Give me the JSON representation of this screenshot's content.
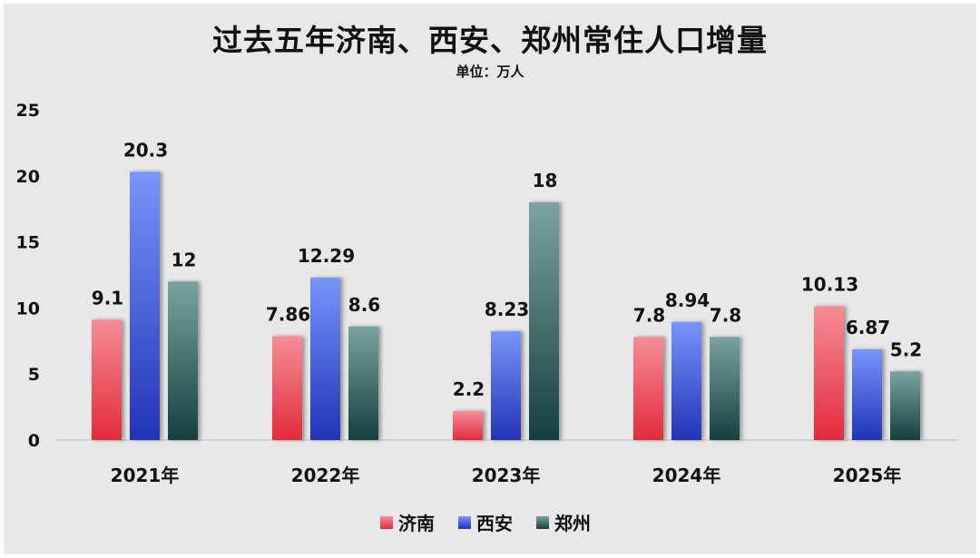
{
  "title": "过去五年济南、西安、郑州常住人口增量",
  "subtitle": "单位：万人",
  "colors": {
    "济南": [
      "#f58d96",
      "#e42a3c"
    ],
    "西安": [
      "#7795fa",
      "#2233b8"
    ],
    "郑州": [
      "#7aa3a0",
      "#163f3f"
    ]
  },
  "chart_data": {
    "type": "bar",
    "categories": [
      "2021年",
      "2022年",
      "2023年",
      "2024年",
      "2025年"
    ],
    "series": [
      {
        "name": "济南",
        "values": [
          9.1,
          7.86,
          2.2,
          7.8,
          10.13
        ],
        "labels": [
          "9.1",
          "7.86",
          "2.2",
          "7.8",
          "10.13"
        ]
      },
      {
        "name": "西安",
        "values": [
          20.3,
          12.29,
          8.23,
          8.94,
          6.87
        ],
        "labels": [
          "20.3",
          "12.29",
          "8.23",
          "8.94",
          "6.87"
        ]
      },
      {
        "name": "郑州",
        "values": [
          12,
          8.6,
          18,
          7.8,
          5.2
        ],
        "labels": [
          "12",
          "8.6",
          "18",
          "7.8",
          "5.2"
        ]
      }
    ],
    "ylim": [
      0,
      25
    ],
    "yticks": [
      "0",
      "5",
      "10",
      "15",
      "20",
      "25"
    ],
    "grid": false,
    "legend_position": "bottom"
  }
}
